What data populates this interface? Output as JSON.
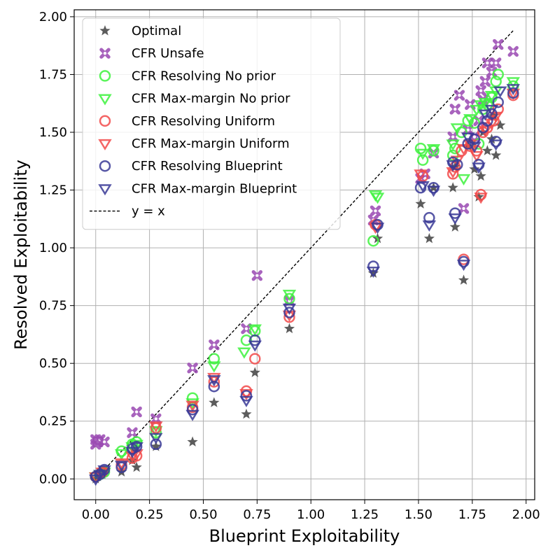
{
  "chart_data": {
    "type": "scatter",
    "title": "",
    "xlabel": "Blueprint Exploitability",
    "ylabel": "Resolved Exploitability",
    "xlim": [
      -0.1,
      2.04
    ],
    "ylim": [
      -0.09,
      2.03
    ],
    "x_ticks": [
      "0.00",
      "0.25",
      "0.50",
      "0.75",
      "1.00",
      "1.25",
      "1.50",
      "1.75",
      "2.00"
    ],
    "y_ticks": [
      "0.00",
      "0.25",
      "0.50",
      "0.75",
      "1.00",
      "1.25",
      "1.50",
      "1.75",
      "2.00"
    ],
    "grid": true,
    "legend_placement": "top-left",
    "reference_line": {
      "name": "y = x",
      "x": [
        0.0,
        1.94
      ],
      "y": [
        0.0,
        1.94
      ],
      "color": "#000000",
      "style": "dashed"
    },
    "series": [
      {
        "name": "Optimal",
        "marker": "star",
        "color": "#4a4a4a",
        "points": [
          [
            0.0,
            0.0
          ],
          [
            0.01,
            0.01
          ],
          [
            0.02,
            0.02
          ],
          [
            0.03,
            0.02
          ],
          [
            0.04,
            0.03
          ],
          [
            0.12,
            0.03
          ],
          [
            0.17,
            0.08
          ],
          [
            0.19,
            0.05
          ],
          [
            0.28,
            0.14
          ],
          [
            0.45,
            0.16
          ],
          [
            0.55,
            0.33
          ],
          [
            0.7,
            0.28
          ],
          [
            0.74,
            0.46
          ],
          [
            0.9,
            0.65
          ],
          [
            1.29,
            0.89
          ],
          [
            1.31,
            1.04
          ],
          [
            1.51,
            1.19
          ],
          [
            1.55,
            1.04
          ],
          [
            1.57,
            1.26
          ],
          [
            1.66,
            1.26
          ],
          [
            1.67,
            1.09
          ],
          [
            1.67,
            1.35
          ],
          [
            1.71,
            0.86
          ],
          [
            1.73,
            1.44
          ],
          [
            1.76,
            1.34
          ],
          [
            1.78,
            1.22
          ],
          [
            1.79,
            1.31
          ],
          [
            1.8,
            1.5
          ],
          [
            1.82,
            1.42
          ],
          [
            1.84,
            1.47
          ],
          [
            1.85,
            1.57
          ],
          [
            1.86,
            1.4
          ],
          [
            1.88,
            1.53
          ]
        ]
      },
      {
        "name": "CFR Unsafe",
        "marker": "x-thick",
        "color": "#9a48b2",
        "points": [
          [
            0.0,
            0.17
          ],
          [
            0.0,
            0.15
          ],
          [
            0.01,
            0.16
          ],
          [
            0.02,
            0.17
          ],
          [
            0.04,
            0.16
          ],
          [
            0.17,
            0.2
          ],
          [
            0.19,
            0.29
          ],
          [
            0.28,
            0.26
          ],
          [
            0.45,
            0.48
          ],
          [
            0.55,
            0.58
          ],
          [
            0.7,
            0.65
          ],
          [
            0.75,
            0.88
          ],
          [
            0.9,
            0.77
          ],
          [
            1.29,
            1.12
          ],
          [
            1.3,
            1.16
          ],
          [
            1.51,
            1.3
          ],
          [
            1.53,
            1.32
          ],
          [
            1.57,
            1.41
          ],
          [
            1.66,
            1.48
          ],
          [
            1.67,
            1.6
          ],
          [
            1.69,
            1.66
          ],
          [
            1.71,
            1.17
          ],
          [
            1.73,
            1.51
          ],
          [
            1.74,
            1.62
          ],
          [
            1.76,
            1.48
          ],
          [
            1.78,
            1.55
          ],
          [
            1.79,
            1.68
          ],
          [
            1.8,
            1.64
          ],
          [
            1.81,
            1.72
          ],
          [
            1.82,
            1.8
          ],
          [
            1.84,
            1.76
          ],
          [
            1.86,
            1.8
          ],
          [
            1.87,
            1.88
          ],
          [
            1.94,
            1.85
          ]
        ]
      },
      {
        "name": "CFR Resolving No prior",
        "marker": "circle",
        "color": "#3df23d",
        "points": [
          [
            0.0,
            0.01
          ],
          [
            0.02,
            0.02
          ],
          [
            0.04,
            0.03
          ],
          [
            0.12,
            0.12
          ],
          [
            0.17,
            0.15
          ],
          [
            0.19,
            0.16
          ],
          [
            0.28,
            0.2
          ],
          [
            0.45,
            0.35
          ],
          [
            0.55,
            0.52
          ],
          [
            0.7,
            0.6
          ],
          [
            0.74,
            0.64
          ],
          [
            0.9,
            0.78
          ],
          [
            1.29,
            1.03
          ],
          [
            1.51,
            1.43
          ],
          [
            1.52,
            1.38
          ],
          [
            1.57,
            1.42
          ],
          [
            1.66,
            1.4
          ],
          [
            1.67,
            1.43
          ],
          [
            1.7,
            1.5
          ],
          [
            1.73,
            1.55
          ],
          [
            1.76,
            1.54
          ],
          [
            1.78,
            1.45
          ],
          [
            1.8,
            1.6
          ],
          [
            1.82,
            1.62
          ],
          [
            1.84,
            1.65
          ],
          [
            1.86,
            1.72
          ],
          [
            1.87,
            1.75
          ],
          [
            1.94,
            1.7
          ]
        ]
      },
      {
        "name": "CFR Max-margin No prior",
        "marker": "triangle-down",
        "color": "#3df23d",
        "points": [
          [
            0.0,
            0.01
          ],
          [
            0.02,
            0.02
          ],
          [
            0.04,
            0.03
          ],
          [
            0.12,
            0.11
          ],
          [
            0.17,
            0.14
          ],
          [
            0.19,
            0.15
          ],
          [
            0.28,
            0.21
          ],
          [
            0.45,
            0.33
          ],
          [
            0.55,
            0.49
          ],
          [
            0.69,
            0.55
          ],
          [
            0.74,
            0.65
          ],
          [
            0.9,
            0.8
          ],
          [
            1.3,
            1.23
          ],
          [
            1.31,
            1.22
          ],
          [
            1.52,
            1.41
          ],
          [
            1.57,
            1.43
          ],
          [
            1.66,
            1.45
          ],
          [
            1.68,
            1.52
          ],
          [
            1.71,
            1.3
          ],
          [
            1.74,
            1.56
          ],
          [
            1.77,
            1.6
          ],
          [
            1.79,
            1.62
          ],
          [
            1.81,
            1.63
          ],
          [
            1.84,
            1.66
          ],
          [
            1.86,
            1.68
          ],
          [
            1.94,
            1.72
          ]
        ]
      },
      {
        "name": "CFR Resolving Uniform",
        "marker": "circle",
        "color": "#f24a4a",
        "points": [
          [
            0.0,
            0.01
          ],
          [
            0.03,
            0.03
          ],
          [
            0.12,
            0.06
          ],
          [
            0.17,
            0.09
          ],
          [
            0.19,
            0.1
          ],
          [
            0.28,
            0.22
          ],
          [
            0.45,
            0.31
          ],
          [
            0.55,
            0.42
          ],
          [
            0.7,
            0.38
          ],
          [
            0.74,
            0.52
          ],
          [
            0.9,
            0.7
          ],
          [
            1.3,
            1.1
          ],
          [
            1.52,
            1.31
          ],
          [
            1.66,
            1.32
          ],
          [
            1.67,
            1.35
          ],
          [
            1.7,
            1.42
          ],
          [
            1.71,
            0.95
          ],
          [
            1.74,
            1.44
          ],
          [
            1.77,
            1.42
          ],
          [
            1.79,
            1.23
          ],
          [
            1.8,
            1.5
          ],
          [
            1.82,
            1.52
          ],
          [
            1.85,
            1.55
          ],
          [
            1.87,
            1.6
          ],
          [
            1.94,
            1.66
          ]
        ]
      },
      {
        "name": "CFR Max-margin Uniform",
        "marker": "triangle-down",
        "color": "#f24a4a",
        "points": [
          [
            0.0,
            0.01
          ],
          [
            0.03,
            0.03
          ],
          [
            0.12,
            0.07
          ],
          [
            0.17,
            0.1
          ],
          [
            0.19,
            0.11
          ],
          [
            0.28,
            0.23
          ],
          [
            0.45,
            0.32
          ],
          [
            0.55,
            0.44
          ],
          [
            0.7,
            0.37
          ],
          [
            0.9,
            0.71
          ],
          [
            1.3,
            1.09
          ],
          [
            1.51,
            1.32
          ],
          [
            1.66,
            1.33
          ],
          [
            1.68,
            1.38
          ],
          [
            1.71,
            1.43
          ],
          [
            1.74,
            1.45
          ],
          [
            1.77,
            1.4
          ],
          [
            1.79,
            1.22
          ],
          [
            1.81,
            1.51
          ],
          [
            1.84,
            1.54
          ],
          [
            1.86,
            1.57
          ],
          [
            1.94,
            1.67
          ]
        ]
      },
      {
        "name": "CFR Resolving Blueprint",
        "marker": "circle",
        "color": "#3a3a96",
        "points": [
          [
            0.0,
            0.01
          ],
          [
            0.02,
            0.02
          ],
          [
            0.04,
            0.04
          ],
          [
            0.12,
            0.05
          ],
          [
            0.17,
            0.13
          ],
          [
            0.19,
            0.14
          ],
          [
            0.28,
            0.15
          ],
          [
            0.45,
            0.3
          ],
          [
            0.55,
            0.4
          ],
          [
            0.7,
            0.36
          ],
          [
            0.74,
            0.6
          ],
          [
            0.9,
            0.72
          ],
          [
            1.29,
            0.92
          ],
          [
            1.31,
            1.1
          ],
          [
            1.51,
            1.26
          ],
          [
            1.55,
            1.13
          ],
          [
            1.57,
            1.26
          ],
          [
            1.66,
            1.37
          ],
          [
            1.67,
            1.15
          ],
          [
            1.68,
            1.36
          ],
          [
            1.71,
            0.94
          ],
          [
            1.73,
            1.45
          ],
          [
            1.76,
            1.47
          ],
          [
            1.78,
            1.36
          ],
          [
            1.8,
            1.52
          ],
          [
            1.82,
            1.55
          ],
          [
            1.84,
            1.58
          ],
          [
            1.86,
            1.46
          ],
          [
            1.87,
            1.63
          ],
          [
            1.94,
            1.67
          ]
        ]
      },
      {
        "name": "CFR Max-margin Blueprint",
        "marker": "triangle-down",
        "color": "#3a3a96",
        "points": [
          [
            0.0,
            0.0
          ],
          [
            0.02,
            0.02
          ],
          [
            0.04,
            0.04
          ],
          [
            0.12,
            0.06
          ],
          [
            0.17,
            0.12
          ],
          [
            0.19,
            0.14
          ],
          [
            0.28,
            0.18
          ],
          [
            0.45,
            0.28
          ],
          [
            0.55,
            0.43
          ],
          [
            0.7,
            0.34
          ],
          [
            0.74,
            0.58
          ],
          [
            0.9,
            0.74
          ],
          [
            1.29,
            0.9
          ],
          [
            1.31,
            1.09
          ],
          [
            1.52,
            1.27
          ],
          [
            1.55,
            1.1
          ],
          [
            1.57,
            1.25
          ],
          [
            1.66,
            1.36
          ],
          [
            1.67,
            1.13
          ],
          [
            1.71,
            0.93
          ],
          [
            1.73,
            1.48
          ],
          [
            1.76,
            1.44
          ],
          [
            1.78,
            1.35
          ],
          [
            1.81,
            1.58
          ],
          [
            1.84,
            1.6
          ],
          [
            1.86,
            1.45
          ],
          [
            1.88,
            1.68
          ],
          [
            1.94,
            1.69
          ]
        ]
      }
    ]
  }
}
